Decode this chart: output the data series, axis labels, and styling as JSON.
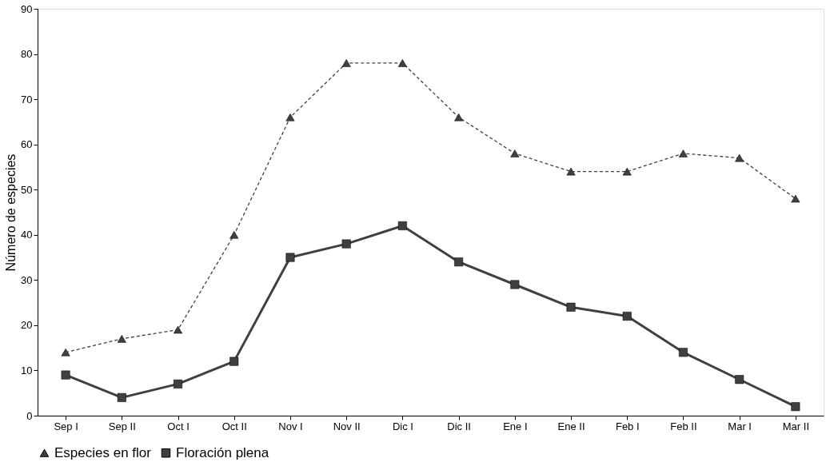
{
  "chart_data": {
    "type": "line",
    "ylabel": "Número de especies",
    "categories": [
      "Sep I",
      "Sep II",
      "Oct I",
      "Oct II",
      "Nov I",
      "Nov II",
      "Dic I",
      "Dic II",
      "Ene I",
      "Ene II",
      "Feb I",
      "Feb II",
      "Mar I",
      "Mar II"
    ],
    "series": [
      {
        "name": "Especies en flor",
        "color": "#404040",
        "marker": "triangle",
        "line_style": "dashed",
        "values": [
          14,
          17,
          19,
          40,
          66,
          78,
          78,
          66,
          58,
          54,
          54,
          58,
          57,
          48
        ]
      },
      {
        "name": "Floración plena",
        "color": "#404040",
        "marker": "square",
        "line_style": "solid",
        "values": [
          9,
          4,
          7,
          12,
          35,
          38,
          42,
          34,
          29,
          24,
          22,
          14,
          8,
          2
        ]
      }
    ],
    "ylim": [
      0,
      90
    ],
    "yticks": [
      0,
      10,
      20,
      30,
      40,
      50,
      60,
      70,
      80,
      90
    ],
    "grid": false,
    "legend": "bottom"
  }
}
